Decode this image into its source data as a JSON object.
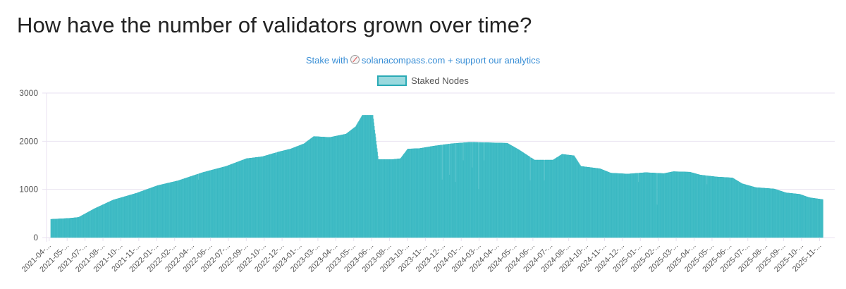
{
  "page": {
    "title": "How have the number of validators grown over time?",
    "stake_prefix": "Stake with",
    "stake_text": "solanacompass.com + support our analytics",
    "stake_icon": "compass-icon"
  },
  "colors": {
    "bar_fill": "#4fc3cb",
    "bar_stroke": "#24aeb9",
    "grid": "#e8e2f0",
    "link": "#3a8fd6"
  },
  "chart_data": {
    "type": "bar",
    "legend": [
      "Staked Nodes"
    ],
    "legend_position": "top",
    "grid": true,
    "ylim": [
      0,
      3000
    ],
    "y_ticks": [
      "0",
      "1000",
      "2000",
      "3000"
    ],
    "x_range": [
      "2021-04",
      "2025-12"
    ],
    "x_ticks": [
      "2021-04-...",
      "2021-05-...",
      "2021-07-...",
      "2021-08-...",
      "2021-10-...",
      "2021-11-...",
      "2022-01-...",
      "2022-02-...",
      "2022-04-...",
      "2022-06-...",
      "2022-07-...",
      "2022-09-...",
      "2022-10-...",
      "2022-12-...",
      "2023-01-...",
      "2023-03-...",
      "2023-04-...",
      "2023-05-...",
      "2023-06-...",
      "2023-08-...",
      "2023-10-...",
      "2023-11-...",
      "2023-12-...",
      "2024-01-...",
      "2024-03-...",
      "2024-04-...",
      "2024-05-...",
      "2024-06-...",
      "2024-07-...",
      "2024-08-...",
      "2024-10-...",
      "2024-11-...",
      "2024-12-...",
      "2025-01-...",
      "2025-02-...",
      "2025-03-...",
      "2025-04-...",
      "2025-05-...",
      "2025-06-...",
      "2025-07-...",
      "2025-08-...",
      "2025-09-...",
      "2025-10-...",
      "2025-11-..."
    ],
    "series": [
      {
        "name": "Staked Nodes",
        "points": [
          {
            "x": "2021-04-10",
            "y": 380
          },
          {
            "x": "2021-05-20",
            "y": 400
          },
          {
            "x": "2021-06-10",
            "y": 420
          },
          {
            "x": "2021-07-15",
            "y": 600
          },
          {
            "x": "2021-08-25",
            "y": 780
          },
          {
            "x": "2021-10-15",
            "y": 920
          },
          {
            "x": "2021-12-01",
            "y": 1080
          },
          {
            "x": "2022-01-15",
            "y": 1180
          },
          {
            "x": "2022-03-10",
            "y": 1350
          },
          {
            "x": "2022-05-01",
            "y": 1480
          },
          {
            "x": "2022-06-15",
            "y": 1640
          },
          {
            "x": "2022-07-20",
            "y": 1680
          },
          {
            "x": "2022-08-25",
            "y": 1780
          },
          {
            "x": "2022-09-20",
            "y": 1840
          },
          {
            "x": "2022-10-20",
            "y": 1950
          },
          {
            "x": "2022-11-10",
            "y": 2100
          },
          {
            "x": "2022-12-15",
            "y": 2080
          },
          {
            "x": "2023-01-20",
            "y": 2150
          },
          {
            "x": "2023-02-10",
            "y": 2300
          },
          {
            "x": "2023-02-25",
            "y": 2540
          },
          {
            "x": "2023-03-20",
            "y": 2540
          },
          {
            "x": "2023-04-01",
            "y": 1620
          },
          {
            "x": "2023-05-01",
            "y": 1620
          },
          {
            "x": "2023-05-20",
            "y": 1640
          },
          {
            "x": "2023-06-05",
            "y": 1840
          },
          {
            "x": "2023-07-01",
            "y": 1850
          },
          {
            "x": "2023-08-01",
            "y": 1900
          },
          {
            "x": "2023-09-10",
            "y": 1950
          },
          {
            "x": "2023-10-20",
            "y": 1980
          },
          {
            "x": "2023-12-01",
            "y": 1970
          },
          {
            "x": "2024-01-10",
            "y": 1960
          },
          {
            "x": "2024-02-05",
            "y": 1820
          },
          {
            "x": "2024-03-10",
            "y": 1610
          },
          {
            "x": "2024-04-20",
            "y": 1610
          },
          {
            "x": "2024-05-10",
            "y": 1730
          },
          {
            "x": "2024-06-05",
            "y": 1700
          },
          {
            "x": "2024-06-20",
            "y": 1480
          },
          {
            "x": "2024-08-01",
            "y": 1430
          },
          {
            "x": "2024-08-25",
            "y": 1340
          },
          {
            "x": "2024-10-01",
            "y": 1320
          },
          {
            "x": "2024-11-10",
            "y": 1350
          },
          {
            "x": "2024-12-20",
            "y": 1330
          },
          {
            "x": "2025-01-10",
            "y": 1370
          },
          {
            "x": "2025-02-15",
            "y": 1360
          },
          {
            "x": "2025-03-10",
            "y": 1300
          },
          {
            "x": "2025-04-15",
            "y": 1260
          },
          {
            "x": "2025-05-20",
            "y": 1240
          },
          {
            "x": "2025-06-10",
            "y": 1120
          },
          {
            "x": "2025-07-10",
            "y": 1040
          },
          {
            "x": "2025-08-20",
            "y": 1010
          },
          {
            "x": "2025-09-15",
            "y": 930
          },
          {
            "x": "2025-10-15",
            "y": 900
          },
          {
            "x": "2025-11-05",
            "y": 830
          },
          {
            "x": "2025-12-05",
            "y": 790
          }
        ],
        "dips": [
          {
            "x": "2022-03-01",
            "y": 1200
          },
          {
            "x": "2022-08-20",
            "y": 1700
          },
          {
            "x": "2023-08-20",
            "y": 1200
          },
          {
            "x": "2023-09-05",
            "y": 1300
          },
          {
            "x": "2023-09-18",
            "y": 1150
          },
          {
            "x": "2023-10-05",
            "y": 1600
          },
          {
            "x": "2023-10-25",
            "y": 1450
          },
          {
            "x": "2023-11-08",
            "y": 1000
          },
          {
            "x": "2023-11-20",
            "y": 1600
          },
          {
            "x": "2024-03-01",
            "y": 1180
          },
          {
            "x": "2024-04-01",
            "y": 1180
          },
          {
            "x": "2024-10-25",
            "y": 1150
          },
          {
            "x": "2024-12-05",
            "y": 680
          },
          {
            "x": "2025-03-25",
            "y": 1100
          }
        ]
      }
    ]
  }
}
